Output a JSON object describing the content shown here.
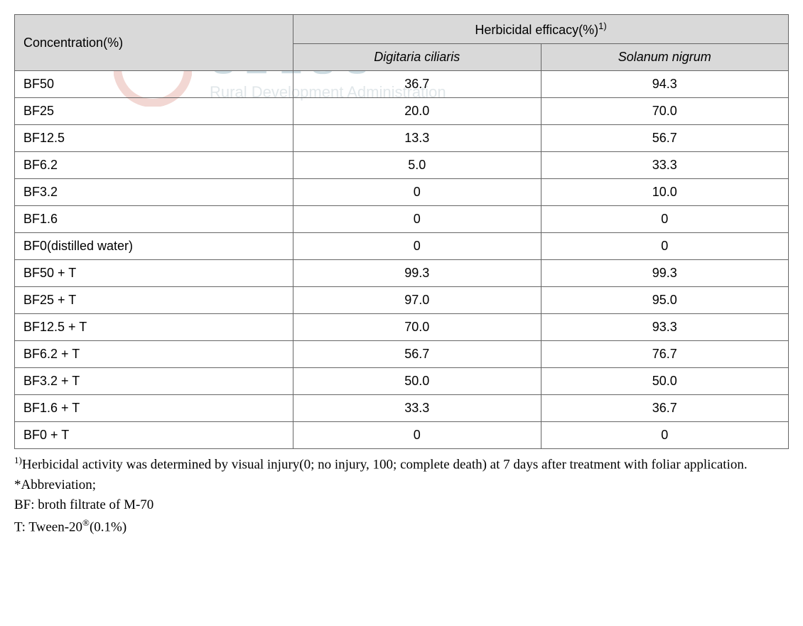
{
  "watermark": {
    "korean": "농촌진흥청",
    "english": "Rural Development Administration"
  },
  "table": {
    "header": {
      "concentration": "Concentration(%)",
      "efficacy_main": "Herbicidal efficacy(%)",
      "efficacy_sup": "1)",
      "col1": "Digitaria ciliaris",
      "col2": "Solanum nigrum"
    },
    "rows": [
      {
        "conc": "BF50",
        "v1": "36.7",
        "v2": "94.3"
      },
      {
        "conc": "BF25",
        "v1": "20.0",
        "v2": "70.0"
      },
      {
        "conc": "BF12.5",
        "v1": "13.3",
        "v2": "56.7"
      },
      {
        "conc": "BF6.2",
        "v1": "5.0",
        "v2": "33.3"
      },
      {
        "conc": "BF3.2",
        "v1": "0",
        "v2": "10.0"
      },
      {
        "conc": "BF1.6",
        "v1": "0",
        "v2": "0"
      },
      {
        "conc": "BF0(distilled water)",
        "v1": "0",
        "v2": "0"
      },
      {
        "conc": "BF50 + T",
        "v1": "99.3",
        "v2": "99.3"
      },
      {
        "conc": "BF25 + T",
        "v1": "97.0",
        "v2": "95.0"
      },
      {
        "conc": "BF12.5 + T",
        "v1": "70.0",
        "v2": "93.3"
      },
      {
        "conc": "BF6.2 + T",
        "v1": "56.7",
        "v2": "76.7"
      },
      {
        "conc": "BF3.2 + T",
        "v1": "50.0",
        "v2": "50.0"
      },
      {
        "conc": "BF1.6 + T",
        "v1": "33.3",
        "v2": "36.7"
      },
      {
        "conc": "BF0 + T",
        "v1": "0",
        "v2": "0"
      }
    ]
  },
  "footnotes": {
    "note1_sup": "1)",
    "note1": "Herbicidal activity was determined by visual injury(0; no injury, 100; complete death) at 7 days   after treatment with foliar application.",
    "abbrev_label": "*Abbreviation;",
    "bf": "BF: broth filtrate of M-70",
    "t_pre": "T: Tween-20",
    "t_sup": "®",
    "t_post": "(0.1%)"
  },
  "style": {
    "header_bg": "#d9d9d9",
    "border_color": "#666666",
    "body_font": "Arial, sans-serif",
    "footnote_font": "Georgia, serif",
    "font_size_table": 18,
    "font_size_footnote": 19
  }
}
